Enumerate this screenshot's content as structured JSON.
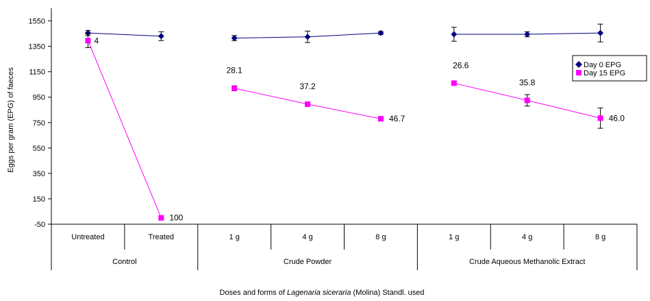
{
  "chart_data": {
    "type": "line",
    "ylabel": "Eggs per gram (EPG) of faeces",
    "xlabel": {
      "prefix": "Doses and forms of ",
      "italic": "Lagenaria siceraria",
      "suffix": " (Molina) Standl. used"
    },
    "yticks": [
      -50,
      150,
      350,
      550,
      750,
      950,
      1150,
      1350,
      1550
    ],
    "ylim": [
      -50,
      1650
    ],
    "categories": [
      "Untreated",
      "Treated",
      "1 g",
      "4 g",
      "8 g",
      "1 g",
      "4 g",
      "8 g"
    ],
    "groups": [
      {
        "label": "Control",
        "span": [
          0,
          1
        ]
      },
      {
        "label": "Crude Powder",
        "span": [
          2,
          4
        ]
      },
      {
        "label": "Crude Aqueous Methanolic Extract",
        "span": [
          5,
          7
        ]
      }
    ],
    "segments": [
      [
        0,
        1
      ],
      [
        2,
        3,
        4
      ],
      [
        5,
        6,
        7
      ]
    ],
    "series": [
      {
        "name": "Day 0 EPG",
        "color": "#000080",
        "marker": "diamond",
        "values": [
          1455,
          1430,
          1415,
          1425,
          1455,
          1445,
          1445,
          1455
        ],
        "errors": [
          20,
          35,
          20,
          45,
          12,
          55,
          20,
          70
        ]
      },
      {
        "name": "Day 15 EPG",
        "color": "#ff00ff",
        "marker": "square",
        "values": [
          1395,
          0,
          1020,
          895,
          780,
          1060,
          925,
          785
        ],
        "errors": [
          55,
          0,
          20,
          18,
          15,
          0,
          45,
          80
        ],
        "labels": [
          "4",
          "100",
          "28.1",
          "37.2",
          "46.7",
          "26.6",
          "35.8",
          "46.0"
        ]
      }
    ],
    "legend": {
      "position": "right"
    }
  }
}
